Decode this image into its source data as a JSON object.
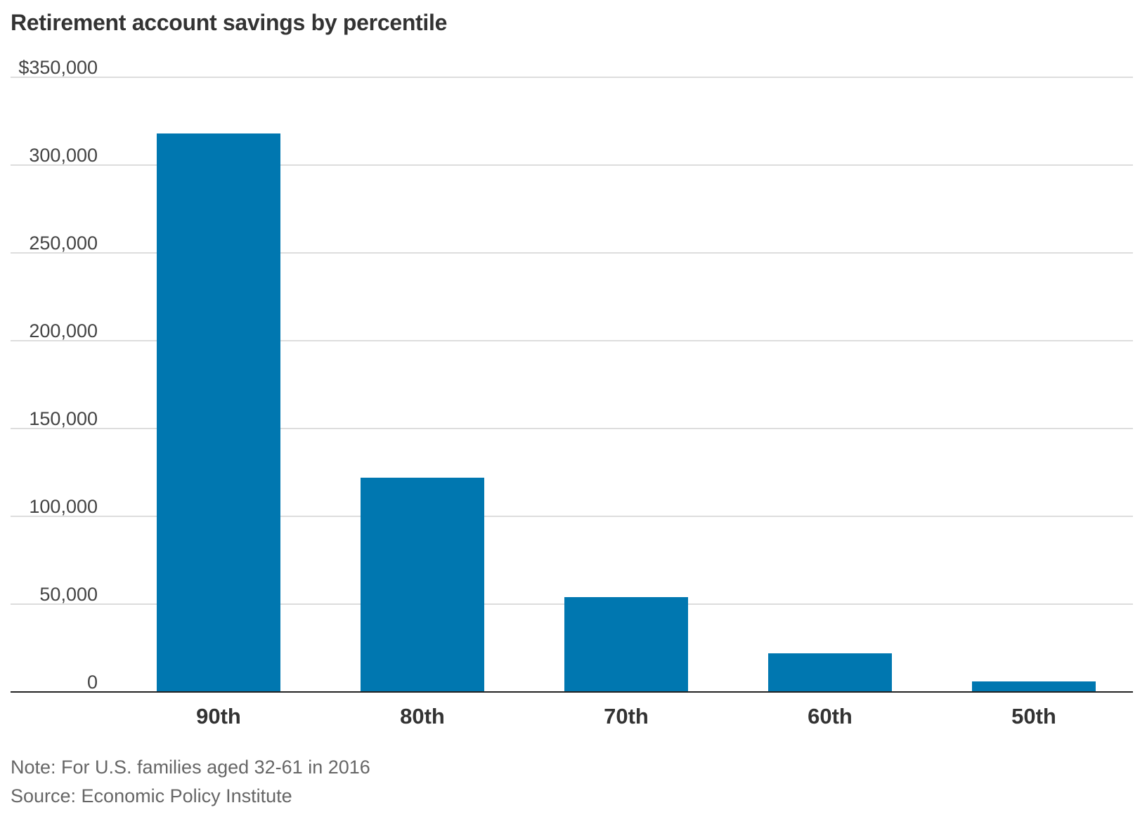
{
  "chart_data": {
    "type": "bar",
    "title": "Retirement account savings by percentile",
    "xlabel": "",
    "ylabel": "",
    "categories": [
      "90th",
      "80th",
      "70th",
      "60th",
      "50th"
    ],
    "values": [
      318000,
      122000,
      54000,
      22000,
      6000
    ],
    "ylim": [
      0,
      350000
    ],
    "yticks": [
      0,
      50000,
      100000,
      150000,
      200000,
      250000,
      300000,
      350000
    ],
    "ytick_labels": [
      "0",
      "50,000",
      "100,000",
      "150,000",
      "200,000",
      "250,000",
      "300,000",
      "$350,000"
    ],
    "grid": true,
    "legend": "none",
    "bar_color": "#0077b0",
    "note": "Note: For U.S. families aged 32-61 in 2016",
    "source": "Source: Economic Policy Institute"
  }
}
